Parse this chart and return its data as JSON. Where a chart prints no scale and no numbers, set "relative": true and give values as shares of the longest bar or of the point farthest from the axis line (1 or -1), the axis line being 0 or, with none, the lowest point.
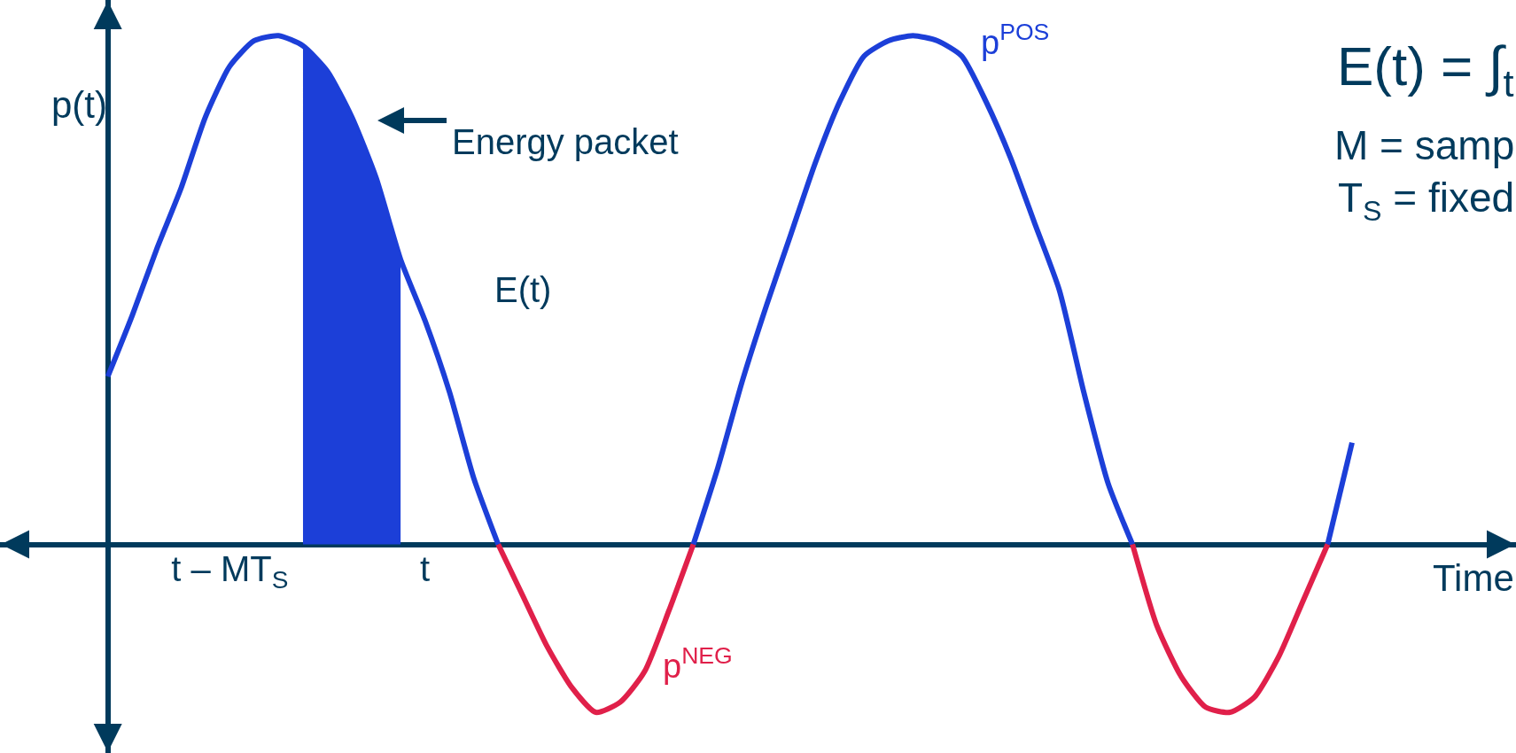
{
  "chart_data": {
    "type": "line",
    "relative": true,
    "ylabel": "p(t)",
    "xlabel": "Time",
    "categories": [
      null,
      null,
      null,
      null,
      null,
      "t – MT$_{S}$",
      null,
      null,
      null,
      null,
      null,
      null,
      null,
      "t",
      null,
      null,
      null,
      null,
      null,
      null,
      null,
      null,
      null,
      null,
      null,
      null,
      null,
      null,
      null,
      null,
      null,
      null,
      null,
      null,
      null,
      null,
      null,
      null,
      null,
      null,
      null,
      null,
      null,
      null,
      null,
      null,
      null,
      null,
      null,
      null,
      null,
      null
    ],
    "series": [
      {
        "name": "p$^{POS}$",
        "color": "#1c3fd8",
        "values": [
          0.33,
          0.45,
          0.58,
          0.7,
          0.84,
          0.94,
          0.99,
          1.0,
          0.98,
          0.93,
          0.84,
          0.72,
          0.56,
          0.44,
          0.3,
          0.13,
          0,
          null,
          null,
          null,
          null,
          null,
          null,
          null,
          0,
          0.15,
          0.32,
          0.47,
          0.61,
          0.75,
          0.87,
          0.96,
          0.99,
          1.0,
          0.99,
          0.96,
          0.87,
          0.76,
          0.63,
          0.5,
          0.3,
          0.12,
          0,
          null,
          null,
          null,
          null,
          null,
          null,
          null,
          0,
          0.2
        ]
      },
      {
        "name": "p$^{NEG}$",
        "color": "#e0204a",
        "values": [
          null,
          null,
          null,
          null,
          null,
          null,
          null,
          null,
          null,
          null,
          null,
          null,
          null,
          null,
          null,
          null,
          0,
          -0.1,
          -0.2,
          -0.28,
          -0.33,
          -0.31,
          -0.25,
          -0.13,
          0,
          null,
          null,
          null,
          null,
          null,
          null,
          null,
          null,
          null,
          null,
          null,
          null,
          null,
          null,
          null,
          null,
          null,
          0,
          -0.16,
          -0.26,
          -0.32,
          -0.33,
          -0.3,
          -0.22,
          -0.11,
          0,
          null
        ]
      },
      {
        "type": "area",
        "color": "#1c3fd8",
        "values": [
          null,
          null,
          null,
          null,
          null,
          null,
          null,
          null,
          0.98,
          0.93,
          0.84,
          0.72,
          0.56,
          null,
          null,
          null,
          null,
          null,
          null,
          null,
          null,
          null,
          null,
          null,
          null,
          null,
          null,
          null,
          null,
          null,
          null,
          null,
          null,
          null,
          null,
          null,
          null,
          null,
          null,
          null,
          null,
          null,
          null,
          null,
          null,
          null,
          null,
          null,
          null,
          null,
          null,
          null
        ]
      }
    ],
    "annotations": [
      "Energy packet",
      "E(t)",
      "E(t) = ∫$_{t}$",
      "M = samp",
      "T$_{S}$ = fixed"
    ]
  }
}
